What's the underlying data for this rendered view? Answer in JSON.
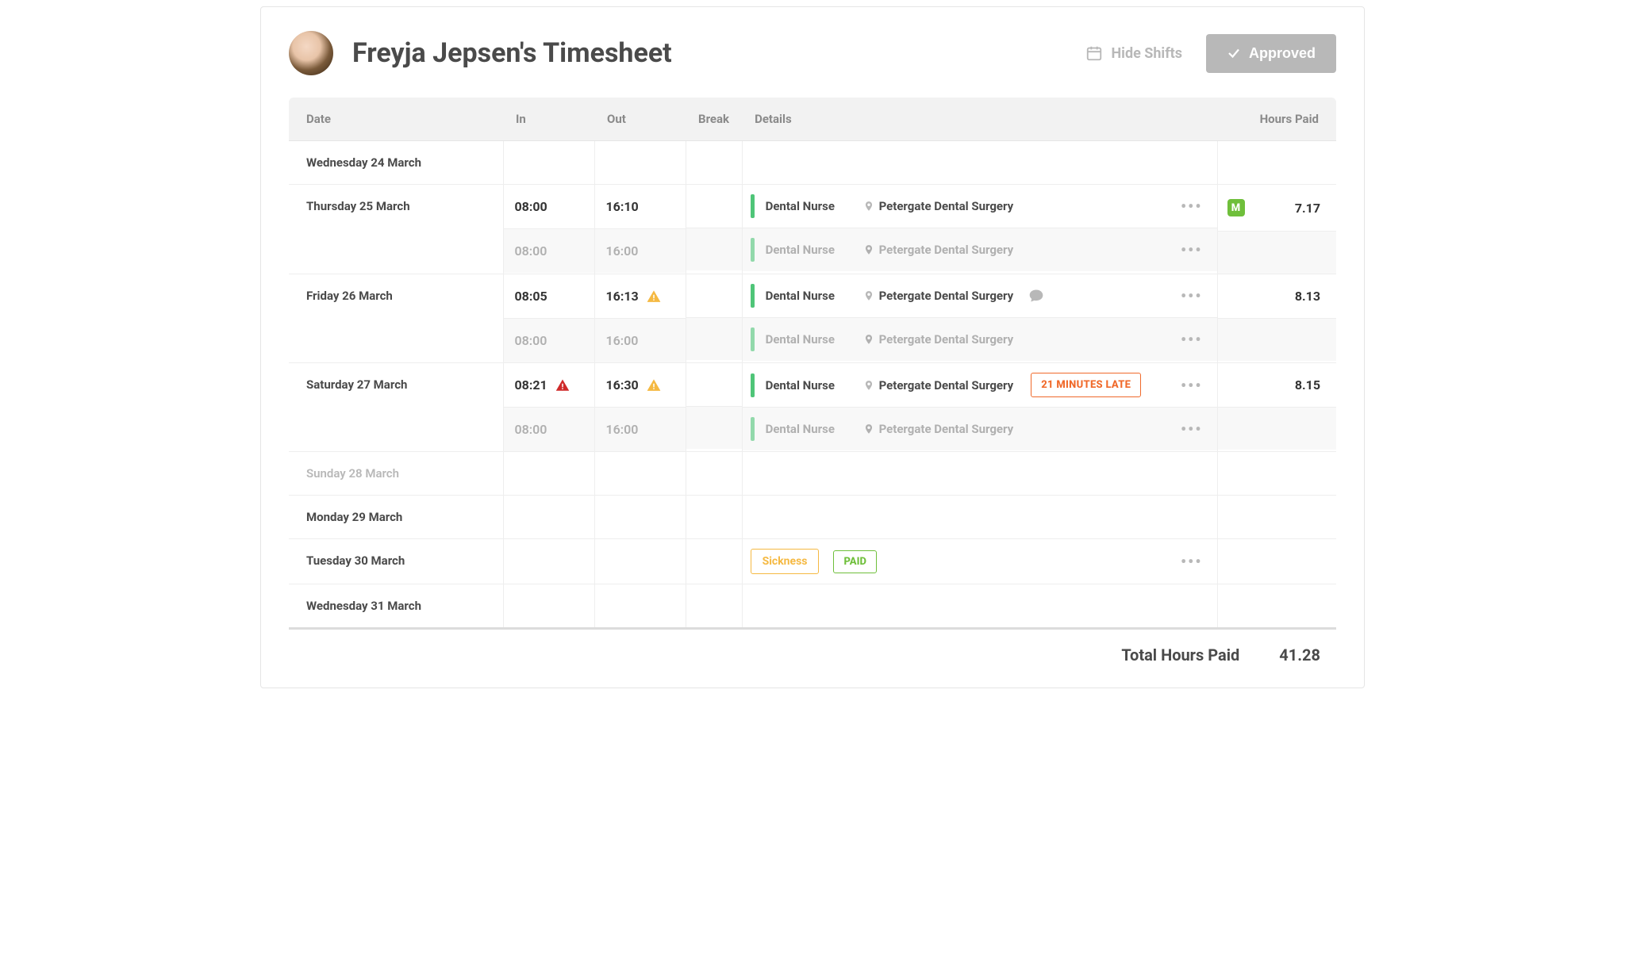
{
  "header": {
    "title": "Freyja Jepsen's Timesheet",
    "hide_shifts": "Hide Shifts",
    "approved": "Approved"
  },
  "columns": {
    "date": "Date",
    "in": "In",
    "out": "Out",
    "break": "Break",
    "details": "Details",
    "hours": "Hours Paid"
  },
  "colors": {
    "green": "#4fc578",
    "green_badge": "#6fbf3b",
    "orange": "#f06a2b",
    "amber": "#f5b942",
    "red": "#cf2a2a",
    "grey_icon": "#b8b8b8",
    "muted_text": "#b0b0b0"
  },
  "more_label": "•••",
  "m_badge": "M",
  "rows": [
    {
      "date": "Wednesday 24 March",
      "empty": true
    },
    {
      "date": "Thursday 25 March",
      "in": "08:00",
      "out": "16:10",
      "role": "Dental Nurse",
      "location": "Petergate Dental Surgery",
      "hours": "7.17",
      "has_m": true,
      "shift": {
        "in": "08:00",
        "out": "16:00",
        "role": "Dental Nurse",
        "location": "Petergate Dental Surgery"
      }
    },
    {
      "date": "Friday 26 March",
      "in": "08:05",
      "out": "16:13",
      "out_warn": true,
      "role": "Dental Nurse",
      "location": "Petergate Dental Surgery",
      "has_comment": true,
      "hours": "8.13",
      "shift": {
        "in": "08:00",
        "out": "16:00",
        "role": "Dental Nurse",
        "location": "Petergate Dental Surgery"
      }
    },
    {
      "date": "Saturday 27 March",
      "in": "08:21",
      "in_alert": true,
      "out": "16:30",
      "out_warn": true,
      "role": "Dental Nurse",
      "location": "Petergate Dental Surgery",
      "late_text": "21 MINUTES LATE",
      "hours": "8.15",
      "shift": {
        "in": "08:00",
        "out": "16:00",
        "role": "Dental Nurse",
        "location": "Petergate Dental Surgery"
      }
    },
    {
      "date": "Sunday 28 March",
      "empty": true,
      "muted": true
    },
    {
      "date": "Monday 29 March",
      "empty": true
    },
    {
      "date": "Tuesday 30 March",
      "sickness": "Sickness",
      "paid": "PAID"
    },
    {
      "date": "Wednesday 31 March",
      "empty": true
    }
  ],
  "footer": {
    "label": "Total Hours Paid",
    "value": "41.28"
  }
}
